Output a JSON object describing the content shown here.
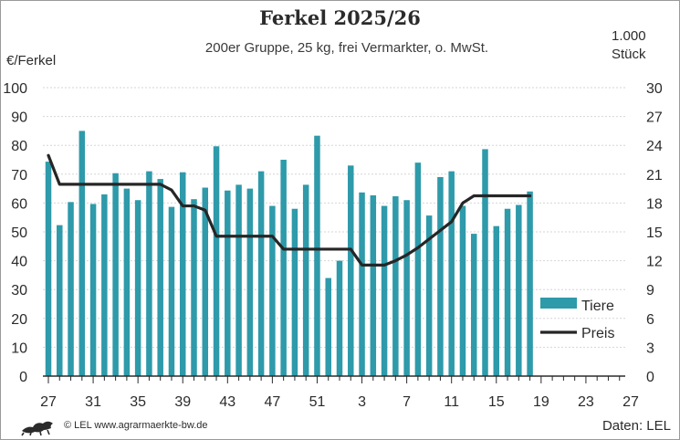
{
  "chart_data": {
    "type": "bar",
    "title": "Ferkel 2025/26",
    "subtitle": "200er Gruppe, 25 kg, frei Vermarkter, o. MwSt.",
    "ylabel_left": "€/Ferkel",
    "ylabel_right": [
      "1.000",
      "Stück"
    ],
    "ylim_left": [
      0,
      100
    ],
    "ylim_right": [
      0,
      30
    ],
    "yticks_left": [
      0,
      10,
      20,
      30,
      40,
      50,
      60,
      70,
      80,
      90,
      100
    ],
    "yticks_right": [
      0,
      3,
      6,
      9,
      12,
      15,
      18,
      21,
      24,
      27,
      30
    ],
    "x_tick_labels": [
      "27",
      "31",
      "35",
      "39",
      "43",
      "47",
      "51",
      "3",
      "7",
      "11",
      "15",
      "19",
      "23",
      "27"
    ],
    "x_weeks": [
      "27",
      "28",
      "29",
      "30",
      "31",
      "32",
      "33",
      "34",
      "35",
      "36",
      "37",
      "38",
      "39",
      "40",
      "41",
      "42",
      "43",
      "44",
      "45",
      "46",
      "47",
      "48",
      "49",
      "50",
      "51",
      "52",
      "1",
      "2",
      "3",
      "4",
      "5",
      "6",
      "7",
      "8",
      "9",
      "10",
      "11",
      "12",
      "13",
      "14",
      "15",
      "16",
      "17",
      "18"
    ],
    "grid": true,
    "legend_position": "bottom-right",
    "series": [
      {
        "name": "Tiere",
        "axis": "right",
        "color": "#2e9aaa",
        "values": [
          22.3,
          15.7,
          18.1,
          25.5,
          17.9,
          18.9,
          21.1,
          19.5,
          18.3,
          21.3,
          20.5,
          17.6,
          21.2,
          18.4,
          19.6,
          23.9,
          19.3,
          19.9,
          19.5,
          21.3,
          17.7,
          22.5,
          17.4,
          19.9,
          25.0,
          10.2,
          12.0,
          21.9,
          19.1,
          18.8,
          17.7,
          18.7,
          18.3,
          22.2,
          16.7,
          20.7,
          21.3,
          17.7,
          14.8,
          23.6,
          15.6,
          17.4,
          17.8,
          19.2
        ]
      },
      {
        "name": "Preis",
        "axis": "left",
        "color": "#262626",
        "values": [
          76.5,
          66.5,
          66.5,
          66.5,
          66.5,
          66.5,
          66.5,
          66.5,
          66.5,
          66.5,
          66.5,
          64.5,
          59.0,
          59.0,
          57.5,
          48.5,
          48.5,
          48.5,
          48.5,
          48.5,
          48.5,
          44.0,
          44.0,
          44.0,
          44.0,
          44.0,
          44.0,
          44.0,
          38.5,
          38.5,
          38.5,
          40.0,
          42.0,
          44.5,
          47.5,
          50.5,
          53.5,
          60.0,
          62.5,
          62.5,
          62.5,
          62.5,
          62.5,
          62.5
        ]
      }
    ]
  },
  "footer": {
    "copyright": "© LEL www.agrarmaerkte-bw.de",
    "source": "Daten: LEL",
    "logo_icon": "lion-logo-icon"
  }
}
